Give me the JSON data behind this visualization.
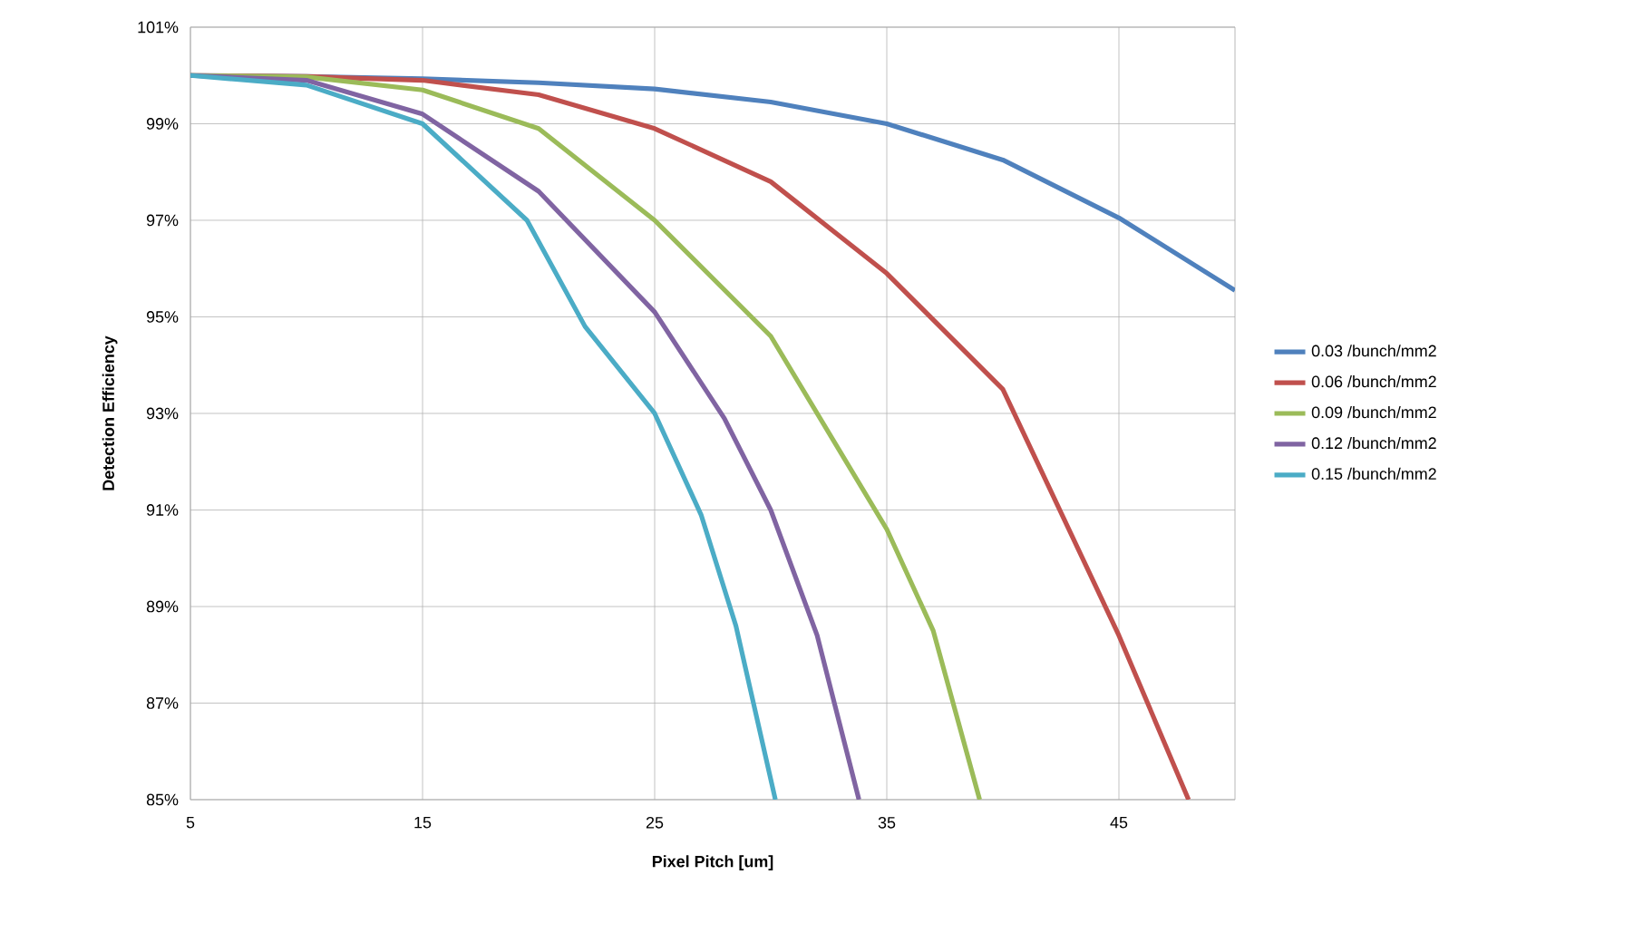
{
  "chart_data": {
    "type": "line",
    "xlabel": "Pixel Pitch [um]",
    "ylabel": "Detection Efficiency",
    "xlim": [
      5,
      50
    ],
    "xticks": [
      5,
      15,
      25,
      35,
      45
    ],
    "ylim": [
      85,
      101
    ],
    "yticks": [
      {
        "value": 85,
        "label": "85%"
      },
      {
        "value": 87,
        "label": "87%"
      },
      {
        "value": 89,
        "label": "89%"
      },
      {
        "value": 91,
        "label": "91%"
      },
      {
        "value": 93,
        "label": "93%"
      },
      {
        "value": 95,
        "label": "95%"
      },
      {
        "value": 97,
        "label": "97%"
      },
      {
        "value": 99,
        "label": "99%"
      },
      {
        "value": 101,
        "label": "101%"
      }
    ],
    "grid": true,
    "legend": "right",
    "marker": "none",
    "line_style": "solid",
    "series": [
      {
        "name": "0.03 /bunch/mm2",
        "color": "#4f81bd",
        "x": [
          5,
          10,
          15,
          20,
          25,
          30,
          35,
          40,
          45,
          50
        ],
        "values": [
          100,
          99.98,
          99.93,
          99.85,
          99.72,
          99.45,
          99.0,
          98.25,
          97.05,
          95.55
        ]
      },
      {
        "name": "0.06 /bunch/mm2",
        "color": "#c0504d",
        "x": [
          5,
          10,
          15,
          20,
          25,
          30,
          35,
          40,
          45,
          48
        ],
        "values": [
          100,
          99.98,
          99.9,
          99.6,
          98.9,
          97.8,
          95.9,
          93.5,
          88.4,
          85
        ]
      },
      {
        "name": "0.09 /bunch/mm2",
        "color": "#9bbb59",
        "x": [
          5,
          10,
          15,
          20,
          25,
          30,
          35,
          37,
          39
        ],
        "values": [
          100,
          99.97,
          99.7,
          98.9,
          97.0,
          94.6,
          90.6,
          88.5,
          85
        ]
      },
      {
        "name": "0.12 /bunch/mm2",
        "color": "#8064a2",
        "x": [
          5,
          10,
          15,
          20,
          25,
          28,
          30,
          32,
          33.8
        ],
        "values": [
          100,
          99.9,
          99.2,
          97.6,
          95.1,
          92.9,
          91.0,
          88.4,
          85
        ]
      },
      {
        "name": "0.15 /bunch/mm2",
        "color": "#4bacc6",
        "x": [
          5,
          10,
          15,
          19.5,
          22,
          25,
          27,
          28.5,
          30.2
        ],
        "values": [
          100,
          99.8,
          99.0,
          97,
          94.8,
          93.0,
          90.9,
          88.6,
          85
        ]
      }
    ]
  }
}
